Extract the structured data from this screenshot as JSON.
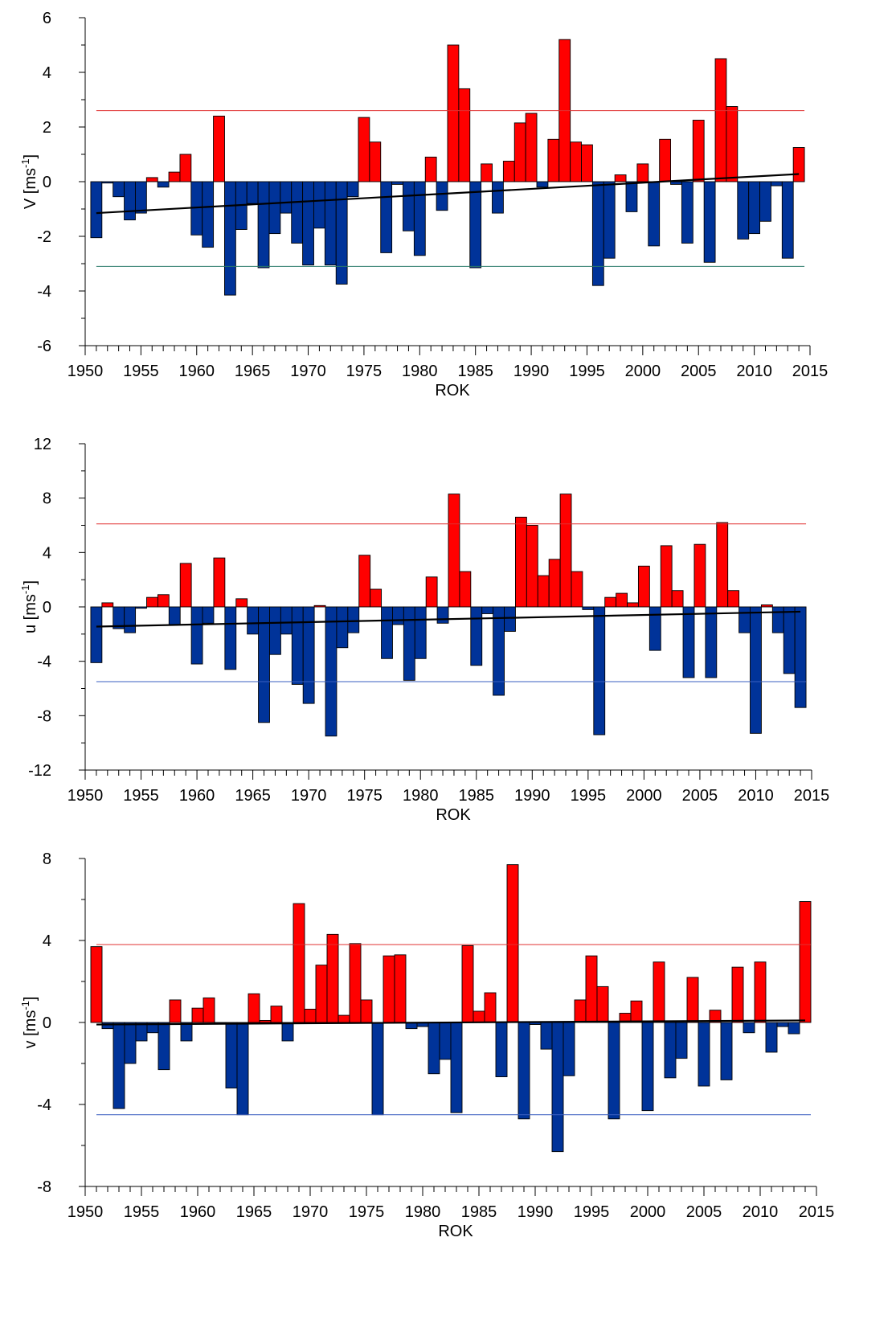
{
  "chart_data": [
    {
      "type": "bar",
      "ylabel": "V [ms",
      "ylabel_sup": "-1",
      "ylabel_close": "]",
      "xlabel": "ROK",
      "xlim": [
        1950,
        2015
      ],
      "ylim": [
        -6,
        6
      ],
      "yticks": [
        -6,
        -4,
        -2,
        0,
        2,
        4,
        6
      ],
      "xticks": [
        1950,
        1955,
        1960,
        1965,
        1970,
        1975,
        1980,
        1985,
        1990,
        1995,
        2000,
        2005,
        2010,
        2015
      ],
      "positive_color": "#ff0000",
      "negative_color": "#003399",
      "years": [
        1951,
        1952,
        1953,
        1954,
        1955,
        1956,
        1957,
        1958,
        1959,
        1960,
        1961,
        1962,
        1963,
        1964,
        1965,
        1966,
        1967,
        1968,
        1969,
        1970,
        1971,
        1972,
        1973,
        1974,
        1975,
        1976,
        1977,
        1978,
        1979,
        1980,
        1981,
        1982,
        1983,
        1984,
        1985,
        1986,
        1987,
        1988,
        1989,
        1990,
        1991,
        1992,
        1993,
        1994,
        1995,
        1996,
        1997,
        1998,
        1999,
        2000,
        2001,
        2002,
        2003,
        2004,
        2005,
        2006,
        2007,
        2008,
        2009,
        2010,
        2011,
        2012,
        2013,
        2014
      ],
      "values": [
        -2.05,
        -0.05,
        -0.55,
        -1.4,
        -1.15,
        0.15,
        -0.2,
        0.35,
        1.0,
        -1.95,
        -2.4,
        2.4,
        -4.15,
        -1.75,
        -0.8,
        -3.15,
        -1.9,
        -1.15,
        -2.25,
        -3.05,
        -1.7,
        -3.05,
        -3.75,
        -0.55,
        2.35,
        1.45,
        -2.6,
        -0.1,
        -1.8,
        -2.7,
        0.9,
        -1.05,
        5.0,
        3.4,
        -3.15,
        0.65,
        -1.15,
        0.75,
        2.15,
        2.5,
        -0.2,
        1.55,
        5.2,
        1.45,
        1.35,
        -3.8,
        -2.8,
        0.25,
        -1.1,
        0.65,
        -2.35,
        1.55,
        -0.1,
        -2.25,
        2.25,
        -2.95,
        4.5,
        2.75,
        -2.1,
        -1.9,
        -1.45,
        -0.15,
        -2.8,
        1.25
      ],
      "upper_line": 2.6,
      "lower_line": -3.1,
      "trend": [
        [
          1951,
          -1.15
        ],
        [
          2014,
          0.28
        ]
      ]
    },
    {
      "type": "bar",
      "ylabel": "u [ms",
      "ylabel_sup": "-1",
      "ylabel_close": "]",
      "xlabel": "ROK",
      "xlim": [
        1950,
        2015
      ],
      "ylim": [
        -12,
        12
      ],
      "yticks": [
        -12,
        -8,
        -4,
        0,
        4,
        8,
        12
      ],
      "xticks": [
        1950,
        1955,
        1960,
        1965,
        1970,
        1975,
        1980,
        1985,
        1990,
        1995,
        2000,
        2005,
        2010,
        2015
      ],
      "positive_color": "#ff0000",
      "negative_color": "#003399",
      "years": [
        1951,
        1952,
        1953,
        1954,
        1955,
        1956,
        1957,
        1958,
        1959,
        1960,
        1961,
        1962,
        1963,
        1964,
        1965,
        1966,
        1967,
        1968,
        1969,
        1970,
        1971,
        1972,
        1973,
        1974,
        1975,
        1976,
        1977,
        1978,
        1979,
        1980,
        1981,
        1982,
        1983,
        1984,
        1985,
        1986,
        1987,
        1988,
        1989,
        1990,
        1991,
        1992,
        1993,
        1994,
        1995,
        1996,
        1997,
        1998,
        1999,
        2000,
        2001,
        2002,
        2003,
        2004,
        2005,
        2006,
        2007,
        2008,
        2009,
        2010,
        2011,
        2012,
        2013,
        2014
      ],
      "values": [
        -4.1,
        0.3,
        -1.6,
        -1.9,
        -0.1,
        0.7,
        0.9,
        -1.3,
        3.2,
        -4.2,
        -1.2,
        3.6,
        -4.6,
        0.6,
        -2.0,
        -8.5,
        -3.5,
        -2.0,
        -5.7,
        -7.1,
        0.1,
        -9.5,
        -3.0,
        -1.9,
        3.8,
        1.3,
        -3.8,
        -1.3,
        -5.4,
        -3.8,
        2.2,
        -1.2,
        8.3,
        2.6,
        -4.3,
        -0.5,
        -6.5,
        -1.8,
        6.6,
        6.0,
        2.3,
        3.5,
        8.3,
        2.6,
        -0.2,
        -9.4,
        0.7,
        1.0,
        0.3,
        3.0,
        -3.2,
        4.5,
        1.2,
        -5.2,
        4.6,
        -5.2,
        6.2,
        1.2,
        -1.9,
        -9.3,
        0.15,
        -1.9,
        -4.9,
        -7.4
      ],
      "upper_line": 6.1,
      "lower_line": -5.5,
      "trend": [
        [
          1951,
          -1.45
        ],
        [
          2014,
          -0.35
        ]
      ]
    },
    {
      "type": "bar",
      "ylabel": "v [ms",
      "ylabel_sup": "-1",
      "ylabel_close": "]",
      "xlabel": "ROK",
      "xlim": [
        1950,
        2015
      ],
      "ylim": [
        -8,
        8
      ],
      "yticks": [
        -8,
        -4,
        0,
        4,
        8
      ],
      "xticks": [
        1950,
        1955,
        1960,
        1965,
        1970,
        1975,
        1980,
        1985,
        1990,
        1995,
        2000,
        2005,
        2010,
        2015
      ],
      "positive_color": "#ff0000",
      "negative_color": "#003399",
      "years": [
        1951,
        1952,
        1953,
        1954,
        1955,
        1956,
        1957,
        1958,
        1959,
        1960,
        1961,
        1962,
        1963,
        1964,
        1965,
        1966,
        1967,
        1968,
        1969,
        1970,
        1971,
        1972,
        1973,
        1974,
        1975,
        1976,
        1977,
        1978,
        1979,
        1980,
        1981,
        1982,
        1983,
        1984,
        1985,
        1986,
        1987,
        1988,
        1989,
        1990,
        1991,
        1992,
        1993,
        1994,
        1995,
        1996,
        1997,
        1998,
        1999,
        2000,
        2001,
        2002,
        2003,
        2004,
        2005,
        2006,
        2007,
        2008,
        2009,
        2010,
        2011,
        2012,
        2013,
        2014
      ],
      "values": [
        3.7,
        -0.3,
        -4.2,
        -2.0,
        -0.9,
        -0.5,
        -2.3,
        1.1,
        -0.9,
        0.7,
        1.2,
        -0.05,
        -3.2,
        -4.5,
        1.4,
        0.1,
        0.8,
        -0.9,
        5.8,
        0.65,
        2.8,
        4.3,
        0.35,
        3.85,
        1.1,
        -4.5,
        3.25,
        3.3,
        -0.3,
        -0.2,
        -2.5,
        -1.8,
        -4.4,
        3.75,
        0.55,
        1.45,
        -2.65,
        7.7,
        -4.7,
        -0.1,
        -1.3,
        -6.3,
        -2.6,
        1.1,
        3.25,
        1.75,
        -4.7,
        0.45,
        1.05,
        -4.3,
        2.95,
        -2.7,
        -1.75,
        2.2,
        -3.1,
        0.6,
        -2.8,
        2.7,
        -0.5,
        2.95,
        -1.45,
        -0.2,
        -0.55,
        5.9
      ],
      "upper_line": 3.8,
      "lower_line": -4.5,
      "trend": [
        [
          1951,
          -0.1
        ],
        [
          2014,
          0.1
        ]
      ]
    }
  ]
}
